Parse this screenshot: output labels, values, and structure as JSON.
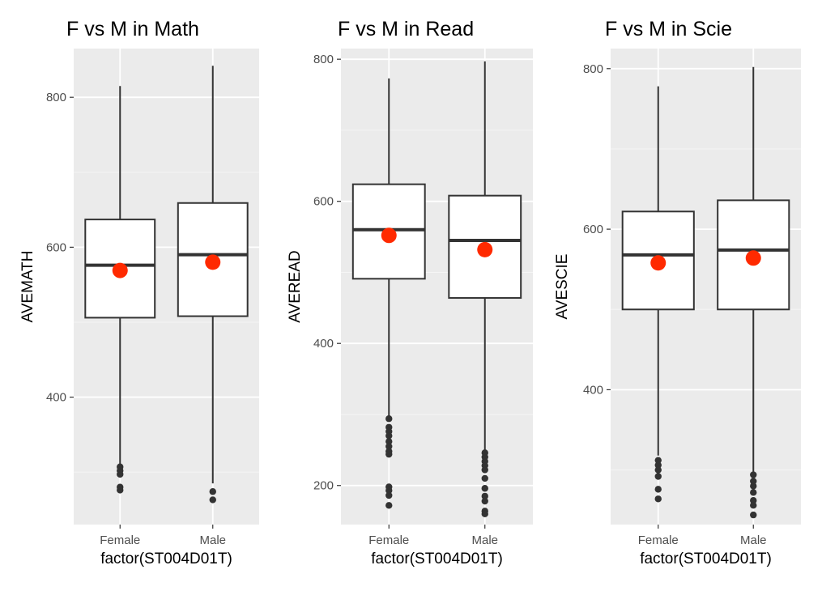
{
  "chart_data": [
    {
      "type": "boxplot",
      "title": "F vs M in Math",
      "xlabel": "factor(ST004D01T)",
      "ylabel": "AVEMATH",
      "categories": [
        "Female",
        "Male"
      ],
      "ylim": [
        230,
        865
      ],
      "yticks": [
        400,
        600,
        800
      ],
      "grid": true,
      "boxes": [
        {
          "category": "Female",
          "whisker_low": 310,
          "q1": 506,
          "median": 576,
          "q3": 637,
          "whisker_high": 815,
          "mean": 569,
          "outliers": [
            307,
            302,
            297,
            280,
            276
          ]
        },
        {
          "category": "Male",
          "whisker_low": 285,
          "q1": 508,
          "median": 590,
          "q3": 659,
          "whisker_high": 842,
          "mean": 580,
          "outliers": [
            274,
            263
          ]
        }
      ]
    },
    {
      "type": "boxplot",
      "title": "F vs M in Read",
      "xlabel": "factor(ST004D01T)",
      "ylabel": "AVEREAD",
      "categories": [
        "Female",
        "Male"
      ],
      "ylim": [
        145,
        815
      ],
      "yticks": [
        200,
        400,
        600,
        800
      ],
      "grid": true,
      "boxes": [
        {
          "category": "Female",
          "whisker_low": 297,
          "q1": 491,
          "median": 560,
          "q3": 624,
          "whisker_high": 773,
          "mean": 552,
          "outliers": [
            294,
            282,
            276,
            270,
            262,
            255,
            248,
            244,
            198,
            193,
            186,
            172
          ]
        },
        {
          "category": "Male",
          "whisker_low": 248,
          "q1": 464,
          "median": 545,
          "q3": 608,
          "whisker_high": 797,
          "mean": 532,
          "outliers": [
            246,
            240,
            234,
            228,
            222,
            210,
            196,
            185,
            178,
            164,
            160
          ]
        }
      ]
    },
    {
      "type": "boxplot",
      "title": "F vs M in Scie",
      "xlabel": "factor(ST004D01T)",
      "ylabel": "AVESCIE",
      "categories": [
        "Female",
        "Male"
      ],
      "ylim": [
        232,
        825
      ],
      "yticks": [
        400,
        600,
        800
      ],
      "grid": true,
      "boxes": [
        {
          "category": "Female",
          "whisker_low": 318,
          "q1": 500,
          "median": 568,
          "q3": 622,
          "whisker_high": 778,
          "mean": 558,
          "outliers": [
            312,
            306,
            300,
            292,
            276,
            264
          ]
        },
        {
          "category": "Male",
          "whisker_low": 298,
          "q1": 500,
          "median": 574,
          "q3": 636,
          "whisker_high": 802,
          "mean": 564,
          "outliers": [
            294,
            286,
            280,
            272,
            262,
            256,
            244
          ]
        }
      ]
    }
  ],
  "colors": {
    "panel": "#ebebeb",
    "grid_major": "#ffffff",
    "grid_minor": "#f5f5f5",
    "box_fill": "#ffffff",
    "box_line": "#333333",
    "outlier": "#333333",
    "mean_point": "#ff2a00",
    "tick_text": "#4d4d4d"
  }
}
